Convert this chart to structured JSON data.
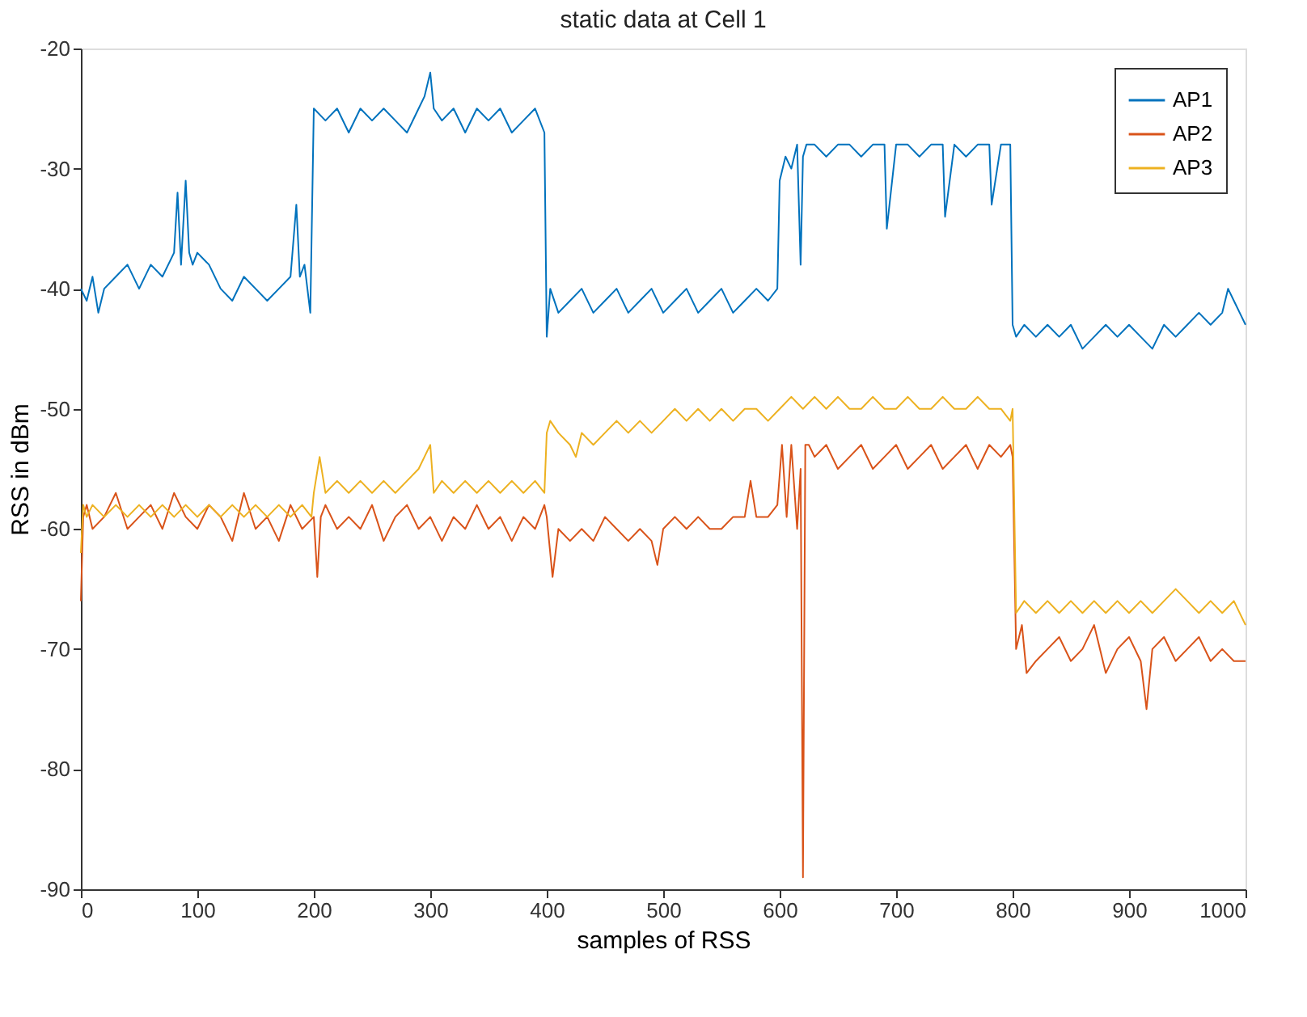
{
  "chart_data": {
    "type": "line",
    "title": "static data at Cell 1",
    "xlabel": "samples of RSS",
    "ylabel": "RSS in dBm",
    "xlim": [
      0,
      1000
    ],
    "ylim": [
      -90,
      -20
    ],
    "xticks": [
      0,
      100,
      200,
      300,
      400,
      500,
      600,
      700,
      800,
      900,
      1000
    ],
    "yticks": [
      -90,
      -80,
      -70,
      -60,
      -50,
      -40,
      -30,
      -20
    ],
    "grid": false,
    "legend": "top right",
    "line_style": "solid",
    "marker": "none",
    "series": [
      {
        "name": "AP1",
        "color": "#0072bd",
        "x": [
          0,
          5,
          10,
          15,
          20,
          30,
          40,
          50,
          60,
          70,
          80,
          83,
          86,
          90,
          93,
          96,
          100,
          110,
          120,
          130,
          140,
          150,
          160,
          170,
          180,
          185,
          188,
          192,
          197,
          200,
          210,
          220,
          230,
          240,
          250,
          260,
          270,
          280,
          290,
          295,
          300,
          303,
          310,
          320,
          330,
          340,
          350,
          360,
          370,
          380,
          390,
          398,
          400,
          403,
          410,
          420,
          430,
          440,
          450,
          460,
          470,
          480,
          490,
          500,
          510,
          520,
          530,
          540,
          550,
          560,
          570,
          580,
          590,
          598,
          600,
          605,
          610,
          615,
          618,
          620,
          623,
          630,
          640,
          650,
          660,
          670,
          680,
          690,
          692,
          700,
          710,
          720,
          730,
          740,
          742,
          750,
          760,
          770,
          780,
          782,
          790,
          798,
          800,
          803,
          810,
          820,
          830,
          840,
          850,
          860,
          870,
          880,
          890,
          900,
          910,
          920,
          930,
          940,
          950,
          960,
          970,
          980,
          985,
          990,
          995,
          1000
        ],
        "values": [
          -40,
          -41,
          -39,
          -42,
          -40,
          -39,
          -38,
          -40,
          -38,
          -39,
          -37,
          -32,
          -38,
          -31,
          -37,
          -38,
          -37,
          -38,
          -40,
          -41,
          -39,
          -40,
          -41,
          -40,
          -39,
          -33,
          -39,
          -38,
          -42,
          -25,
          -26,
          -25,
          -27,
          -25,
          -26,
          -25,
          -26,
          -27,
          -25,
          -24,
          -22,
          -25,
          -26,
          -25,
          -27,
          -25,
          -26,
          -25,
          -27,
          -26,
          -25,
          -27,
          -44,
          -40,
          -42,
          -41,
          -40,
          -42,
          -41,
          -40,
          -42,
          -41,
          -40,
          -42,
          -41,
          -40,
          -42,
          -41,
          -40,
          -42,
          -41,
          -40,
          -41,
          -40,
          -31,
          -29,
          -30,
          -28,
          -38,
          -29,
          -28,
          -28,
          -29,
          -28,
          -28,
          -29,
          -28,
          -28,
          -35,
          -28,
          -28,
          -29,
          -28,
          -28,
          -34,
          -28,
          -29,
          -28,
          -28,
          -33,
          -28,
          -28,
          -43,
          -44,
          -43,
          -44,
          -43,
          -44,
          -43,
          -45,
          -44,
          -43,
          -44,
          -43,
          -44,
          -45,
          -43,
          -44,
          -43,
          -42,
          -43,
          -42,
          -40,
          -41,
          -42,
          -43
        ]
      },
      {
        "name": "AP2",
        "color": "#d95319",
        "x": [
          0,
          2,
          5,
          10,
          20,
          30,
          40,
          50,
          60,
          70,
          80,
          90,
          100,
          110,
          120,
          130,
          140,
          150,
          160,
          170,
          180,
          190,
          200,
          203,
          206,
          210,
          220,
          230,
          240,
          250,
          260,
          270,
          280,
          290,
          300,
          310,
          320,
          330,
          340,
          350,
          360,
          370,
          380,
          390,
          398,
          400,
          405,
          410,
          420,
          430,
          440,
          450,
          460,
          470,
          480,
          490,
          495,
          500,
          510,
          520,
          530,
          540,
          550,
          560,
          570,
          575,
          580,
          590,
          598,
          602,
          606,
          610,
          615,
          618,
          620,
          622,
          625,
          630,
          640,
          650,
          660,
          670,
          680,
          690,
          700,
          710,
          720,
          730,
          740,
          750,
          760,
          770,
          780,
          790,
          798,
          800,
          803,
          808,
          812,
          820,
          830,
          840,
          850,
          860,
          870,
          880,
          890,
          900,
          910,
          915,
          920,
          930,
          940,
          950,
          960,
          970,
          980,
          990,
          1000
        ],
        "values": [
          -66,
          -59,
          -58,
          -60,
          -59,
          -57,
          -60,
          -59,
          -58,
          -60,
          -57,
          -59,
          -60,
          -58,
          -59,
          -61,
          -57,
          -60,
          -59,
          -61,
          -58,
          -60,
          -59,
          -64,
          -59,
          -58,
          -60,
          -59,
          -60,
          -58,
          -61,
          -59,
          -58,
          -60,
          -59,
          -61,
          -59,
          -60,
          -58,
          -60,
          -59,
          -61,
          -59,
          -60,
          -58,
          -59,
          -64,
          -60,
          -61,
          -60,
          -61,
          -59,
          -60,
          -61,
          -60,
          -61,
          -63,
          -60,
          -59,
          -60,
          -59,
          -60,
          -60,
          -59,
          -59,
          -56,
          -59,
          -59,
          -58,
          -53,
          -59,
          -53,
          -60,
          -55,
          -89,
          -53,
          -53,
          -54,
          -53,
          -55,
          -54,
          -53,
          -55,
          -54,
          -53,
          -55,
          -54,
          -53,
          -55,
          -54,
          -53,
          -55,
          -53,
          -54,
          -53,
          -54,
          -70,
          -68,
          -72,
          -71,
          -70,
          -69,
          -71,
          -70,
          -68,
          -72,
          -70,
          -69,
          -71,
          -75,
          -70,
          -69,
          -71,
          -70,
          -69,
          -71,
          -70,
          -71,
          -71
        ]
      },
      {
        "name": "AP3",
        "color": "#edb120",
        "x": [
          0,
          2,
          5,
          10,
          20,
          30,
          40,
          50,
          60,
          70,
          80,
          90,
          100,
          110,
          120,
          130,
          140,
          150,
          160,
          170,
          180,
          190,
          198,
          200,
          205,
          210,
          220,
          230,
          240,
          250,
          260,
          270,
          280,
          290,
          295,
          300,
          303,
          310,
          320,
          330,
          340,
          350,
          360,
          370,
          380,
          390,
          398,
          400,
          403,
          410,
          420,
          425,
          430,
          440,
          450,
          460,
          470,
          480,
          490,
          500,
          510,
          520,
          530,
          540,
          550,
          560,
          570,
          580,
          590,
          600,
          610,
          620,
          630,
          640,
          650,
          660,
          670,
          680,
          690,
          700,
          710,
          720,
          730,
          740,
          750,
          760,
          770,
          780,
          790,
          798,
          800,
          803,
          810,
          820,
          830,
          840,
          850,
          860,
          870,
          880,
          890,
          900,
          910,
          920,
          930,
          940,
          950,
          960,
          970,
          980,
          990,
          1000
        ],
        "values": [
          -62,
          -58,
          -59,
          -58,
          -59,
          -58,
          -59,
          -58,
          -59,
          -58,
          -59,
          -58,
          -59,
          -58,
          -59,
          -58,
          -59,
          -58,
          -59,
          -58,
          -59,
          -58,
          -59,
          -57,
          -54,
          -57,
          -56,
          -57,
          -56,
          -57,
          -56,
          -57,
          -56,
          -55,
          -54,
          -53,
          -57,
          -56,
          -57,
          -56,
          -57,
          -56,
          -57,
          -56,
          -57,
          -56,
          -57,
          -52,
          -51,
          -52,
          -53,
          -54,
          -52,
          -53,
          -52,
          -51,
          -52,
          -51,
          -52,
          -51,
          -50,
          -51,
          -50,
          -51,
          -50,
          -51,
          -50,
          -50,
          -51,
          -50,
          -49,
          -50,
          -49,
          -50,
          -49,
          -50,
          -50,
          -49,
          -50,
          -50,
          -49,
          -50,
          -50,
          -49,
          -50,
          -50,
          -49,
          -50,
          -50,
          -51,
          -50,
          -67,
          -66,
          -67,
          -66,
          -67,
          -66,
          -67,
          -66,
          -67,
          -66,
          -67,
          -66,
          -67,
          -66,
          -65,
          -66,
          -67,
          -66,
          -67,
          -66,
          -68
        ]
      }
    ]
  }
}
